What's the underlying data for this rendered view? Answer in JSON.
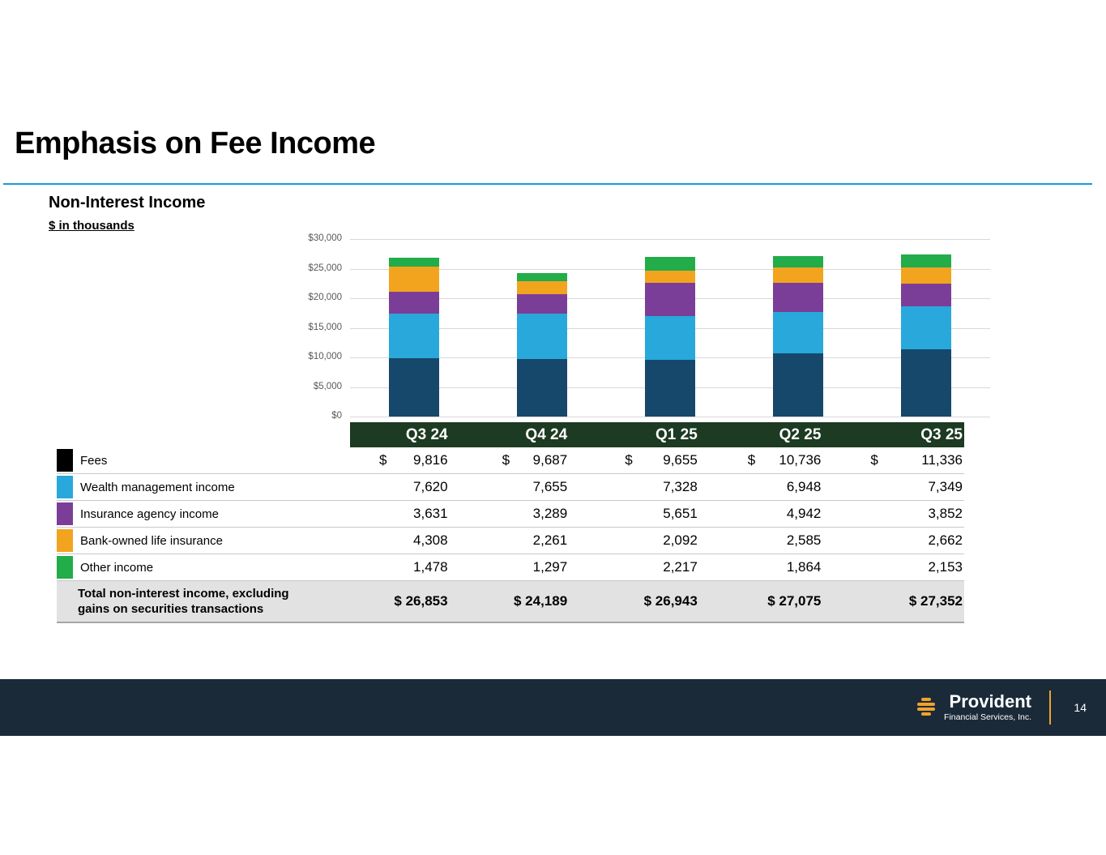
{
  "slide": {
    "title": "Emphasis on Fee Income",
    "section_title": "Non-Interest Income",
    "units": "$ in thousands"
  },
  "chart_data": {
    "type": "bar",
    "stacked": true,
    "title": "Non-Interest Income",
    "units": "$ in thousands",
    "categories": [
      "Q3 24",
      "Q4 24",
      "Q1 25",
      "Q2 25",
      "Q3 25"
    ],
    "series": [
      {
        "name": "Fees",
        "color": "#16486b",
        "values": [
          9816,
          9687,
          9655,
          10736,
          11336
        ]
      },
      {
        "name": "Wealth management income",
        "color": "#29a8dc",
        "values": [
          7620,
          7655,
          7328,
          6948,
          7349
        ]
      },
      {
        "name": "Insurance agency income",
        "color": "#7b3e98",
        "values": [
          3631,
          3289,
          5651,
          4942,
          3852
        ]
      },
      {
        "name": "Bank-owned life insurance",
        "color": "#f2a41f",
        "values": [
          4308,
          2261,
          2092,
          2585,
          2662
        ]
      },
      {
        "name": "Other income",
        "color": "#22ac4a",
        "values": [
          1478,
          1297,
          2217,
          1864,
          2153
        ]
      }
    ],
    "totals": [
      26853,
      24189,
      26943,
      27075,
      27352
    ],
    "ylim": [
      0,
      30000
    ],
    "ytick_step": 5000,
    "yticks": [
      {
        "value": 30000,
        "label": "$30,000"
      },
      {
        "value": 25000,
        "label": "$25,000"
      },
      {
        "value": 20000,
        "label": "$20,000"
      },
      {
        "value": 15000,
        "label": "$15,000"
      },
      {
        "value": 10000,
        "label": "$10,000"
      },
      {
        "value": 5000,
        "label": "$5,000"
      },
      {
        "value": 0,
        "label": "$0"
      }
    ],
    "grid": true,
    "legend_position": "table-left-swatches"
  },
  "table": {
    "header": [
      "Q3 24",
      "Q4 24",
      "Q1 25",
      "Q2 25",
      "Q3 25"
    ],
    "rows": [
      {
        "label": "Fees",
        "swatch_color": "#000000",
        "dollar_sign": "$",
        "values": [
          "9,816",
          "9,687",
          "9,655",
          "10,736",
          "11,336"
        ]
      },
      {
        "label": "Wealth management income",
        "swatch_color": "#29a8dc",
        "values": [
          "7,620",
          "7,655",
          "7,328",
          "6,948",
          "7,349"
        ]
      },
      {
        "label": "Insurance agency income",
        "swatch_color": "#7b3e98",
        "values": [
          "3,631",
          "3,289",
          "5,651",
          "4,942",
          "3,852"
        ]
      },
      {
        "label": "Bank-owned life insurance",
        "swatch_color": "#f2a41f",
        "values": [
          "4,308",
          "2,261",
          "2,092",
          "2,585",
          "2,662"
        ]
      },
      {
        "label": "Other income",
        "swatch_color": "#22ac4a",
        "values": [
          "1,478",
          "1,297",
          "2,217",
          "1,864",
          "2,153"
        ]
      }
    ],
    "total_row": {
      "label_line1": "Total non-interest income, excluding",
      "label_line2": "gains on securities transactions",
      "values": [
        "$ 26,853",
        "$ 24,189",
        "$ 26,943",
        "$ 27,075",
        "$ 27,352"
      ]
    }
  },
  "footer": {
    "brand": "Provident",
    "brand_sub": "Financial Services, Inc.",
    "page_number": "14"
  },
  "colors": {
    "accent_line": "#199bd7",
    "quarter_header_bg": "#1d3a22",
    "footer_bg": "#1b2a39",
    "total_row_bg": "#e2e2e2",
    "gridline": "#d9d9d9",
    "brand_orange": "#f0a22e"
  }
}
